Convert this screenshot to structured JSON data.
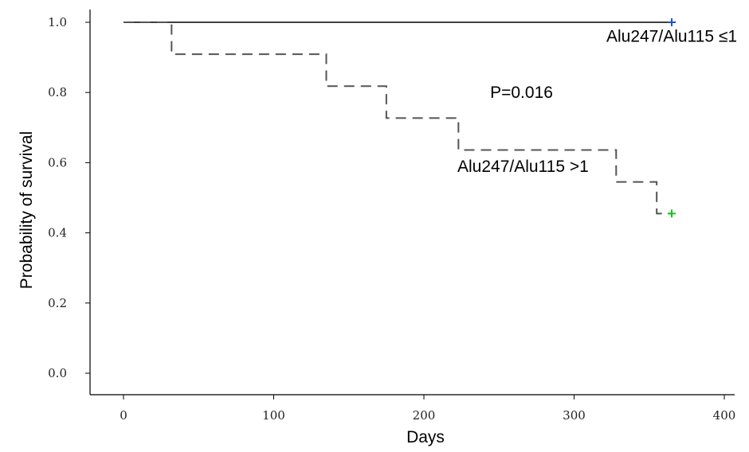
{
  "chart_data": {
    "type": "line",
    "xlabel": "Days",
    "ylabel": "Probability of survival",
    "xlim": [
      -10,
      420
    ],
    "ylim": [
      -0.06,
      1.04
    ],
    "x_ticks": [
      0,
      100,
      200,
      300,
      400
    ],
    "x_tick_labels": [
      "0",
      "100",
      "200",
      "300",
      "400"
    ],
    "y_ticks": [
      0.0,
      0.2,
      0.4,
      0.6,
      0.8,
      1.0
    ],
    "y_tick_labels": [
      "0.0",
      "0.2",
      "0.4",
      "0.6",
      "0.8",
      "1.0"
    ],
    "grid": false,
    "series": [
      {
        "name": "Alu247/Alu115 ≤1",
        "style": "solid",
        "color": "#000000",
        "censor_color": "#1f4fd8",
        "x": [
          0,
          365
        ],
        "y": [
          1.0,
          1.0
        ],
        "censored": [
          [
            365,
            1.0
          ]
        ]
      },
      {
        "name": "Alu247/Alu115 >1",
        "style": "dashed",
        "color": "#555555",
        "censor_color": "#19c21b",
        "x": [
          0,
          32,
          135,
          175,
          223,
          328,
          355,
          365
        ],
        "y": [
          1.0,
          0.909,
          0.818,
          0.727,
          0.636,
          0.545,
          0.455,
          0.455
        ],
        "censored": [
          [
            365,
            0.455
          ]
        ]
      }
    ],
    "annotations": [
      {
        "text": "Alu247/Alu115 ≤1",
        "x": 365,
        "y": 0.96,
        "anchor": "middle"
      },
      {
        "text": "P=0.016",
        "x": 265,
        "y": 0.8,
        "anchor": "middle"
      },
      {
        "text": "Alu247/Alu115 >1",
        "x": 266,
        "y": 0.59,
        "anchor": "middle"
      }
    ]
  }
}
